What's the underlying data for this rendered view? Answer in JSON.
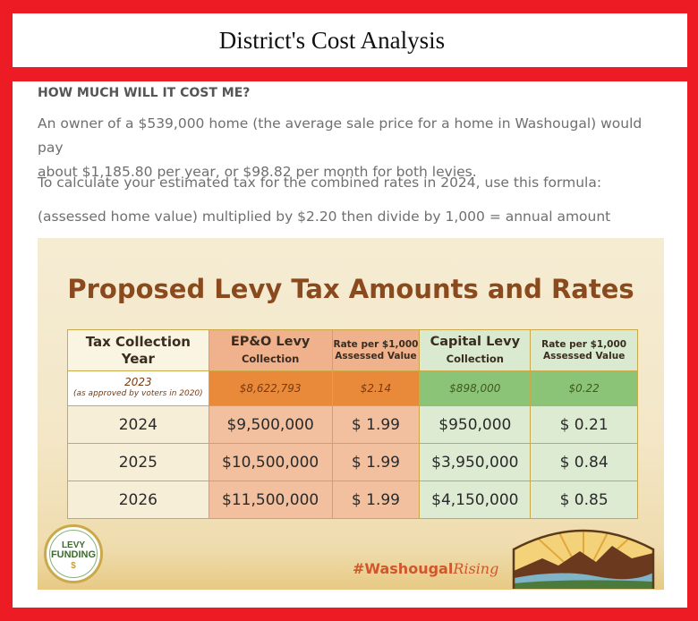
{
  "header": {
    "title": "District's Cost Analysis"
  },
  "content": {
    "heading": "HOW MUCH WILL IT COST ME?",
    "paragraph1_line1": "An owner of a $539,000 home (the average sale price for a home in Washougal) would pay",
    "paragraph1_line2": "about $1,185.80 per year, or $98.82 per month for both levies.",
    "paragraph2": "To calculate your estimated tax for the combined rates in 2024, use this formula:",
    "paragraph3": "(assessed home value)  multiplied by $2.20 then divide by 1,000 = annual amount"
  },
  "graphic": {
    "title": "Proposed Levy Tax Amounts and Rates",
    "table": {
      "headers": {
        "year_line1": "Tax Collection",
        "year_line2": "Year",
        "ep_line1": "EP&O Levy",
        "ep_line2": "Collection",
        "rate1_line1": "Rate per $1,000",
        "rate1_line2": "Assessed Value",
        "cap_line1": "Capital Levy",
        "cap_line2": "Collection",
        "rate2_line1": "Rate per $1,000",
        "rate2_line2": "Assessed Value"
      },
      "row_2023": {
        "year": "2023",
        "note": "(as approved by voters in 2020)",
        "ep": "$8,622,793",
        "rate1": "$2.14",
        "cap": "$898,000",
        "rate2": "$0.22"
      },
      "rows": [
        {
          "year": "2024",
          "ep": "$9,500,000",
          "rate1": "$ 1.99",
          "cap": "$950,000",
          "rate2": "$ 0.21"
        },
        {
          "year": "2025",
          "ep": "$10,500,000",
          "rate1": "$ 1.99",
          "cap": "$3,950,000",
          "rate2": "$ 0.84"
        },
        {
          "year": "2026",
          "ep": "$11,500,000",
          "rate1": "$ 1.99",
          "cap": "$4,150,000",
          "rate2": "$ 0.85"
        }
      ]
    },
    "badge": {
      "line1": "LEVY",
      "line2": "FUNDING",
      "line3": "$"
    },
    "hashtag": {
      "part1": "#Washougal",
      "part2": "Rising"
    },
    "colors": {
      "frame": "#ed1c24",
      "title": "#8a4a1e",
      "ep_highlight": "#e9893a",
      "cap_highlight": "#8cc477"
    }
  }
}
